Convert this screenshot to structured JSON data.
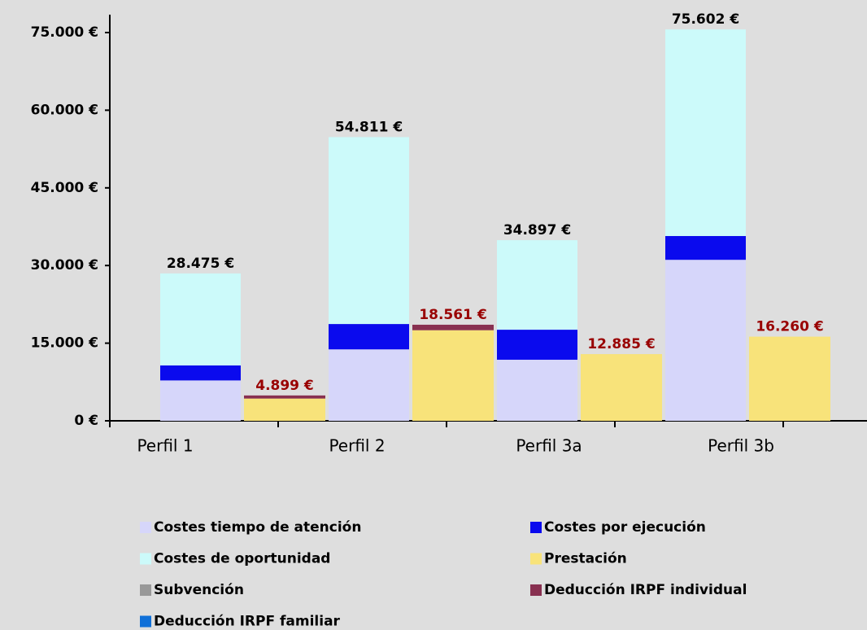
{
  "chart_data": {
    "type": "bar",
    "categories": [
      "Perfil 1",
      "Perfil 2",
      "Perfil 3a",
      "Perfil 3b"
    ],
    "series": [
      {
        "name": "Costes tiempo de atención",
        "color": "#d6d6fa",
        "stack": "cost",
        "values": [
          7800,
          13800,
          11800,
          31100
        ]
      },
      {
        "name": "Costes por ejecución",
        "color": "#0a0aee",
        "stack": "cost",
        "values": [
          2900,
          4900,
          5800,
          4600
        ]
      },
      {
        "name": "Costes de oportunidad",
        "color": "#ccfafa",
        "stack": "cost",
        "values": [
          17775,
          36111,
          17297,
          39902
        ]
      },
      {
        "name": "Prestación",
        "color": "#f8e37a",
        "stack": "benefit",
        "values": [
          4300,
          17500,
          12885,
          16260
        ]
      },
      {
        "name": "Subvención",
        "color": "#999999",
        "stack": "benefit",
        "values": [
          0,
          0,
          0,
          0
        ]
      },
      {
        "name": "Deducción IRPF individual",
        "color": "#883050",
        "stack": "benefit",
        "values": [
          599,
          1061,
          0,
          0
        ]
      },
      {
        "name": "Deducción IRPF familiar",
        "color": "#1070d8",
        "stack": "benefit",
        "values": [
          0,
          0,
          0,
          0
        ]
      }
    ],
    "cost_totals": {
      "color": "#000000",
      "values": [
        28475,
        54811,
        34897,
        75602
      ],
      "value_labels": [
        "28.475 €",
        "54.811 €",
        "34.897 €",
        "75.602 €"
      ]
    },
    "benefit_totals": {
      "color": "#990000",
      "values": [
        4899,
        18561,
        12885,
        16260
      ],
      "value_labels": [
        "4.899 €",
        "18.561 €",
        "12.885 €",
        "16.260 €"
      ]
    },
    "ylim": [
      0,
      75000
    ],
    "yticks": [
      {
        "value": 0,
        "label": "0 €"
      },
      {
        "value": 15000,
        "label": "15.000 €"
      },
      {
        "value": 30000,
        "label": "30.000 €"
      },
      {
        "value": 45000,
        "label": "45.000 €"
      },
      {
        "value": 60000,
        "label": "60.000 €"
      },
      {
        "value": 75000,
        "label": "75.000 €"
      }
    ]
  }
}
